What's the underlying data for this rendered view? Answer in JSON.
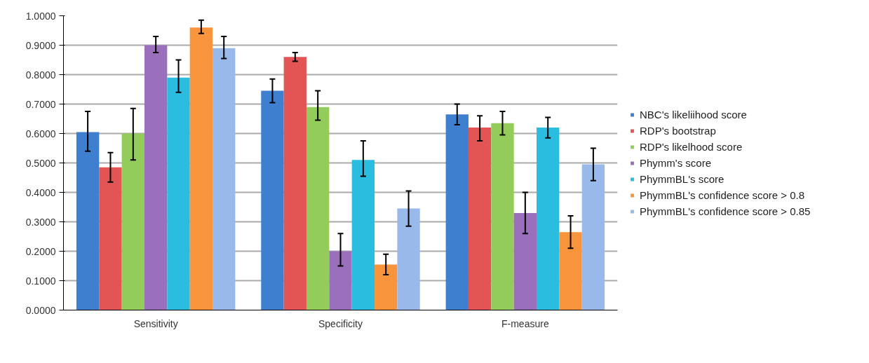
{
  "chart_data": {
    "type": "bar",
    "categories": [
      "Sensitivity",
      "Specificity",
      "F-measure"
    ],
    "series": [
      {
        "name": "NBC's likeliihood score",
        "color": "#3f7fd0",
        "values": [
          0.605,
          0.745,
          0.665
        ],
        "errors": [
          [
            0.54,
            0.675
          ],
          [
            0.705,
            0.785
          ],
          [
            0.63,
            0.7
          ]
        ]
      },
      {
        "name": "RDP's bootstrap",
        "color": "#e35555",
        "values": [
          0.485,
          0.86,
          0.62
        ],
        "errors": [
          [
            0.435,
            0.535
          ],
          [
            0.845,
            0.875
          ],
          [
            0.575,
            0.66
          ]
        ]
      },
      {
        "name": "RDP's likelhood score",
        "color": "#93cc5a",
        "values": [
          0.6,
          0.69,
          0.635
        ],
        "errors": [
          [
            0.51,
            0.685
          ],
          [
            0.645,
            0.745
          ],
          [
            0.595,
            0.675
          ]
        ]
      },
      {
        "name": "Phymm's score",
        "color": "#9a70bd",
        "values": [
          0.9,
          0.2,
          0.33
        ],
        "errors": [
          [
            0.875,
            0.93
          ],
          [
            0.15,
            0.26
          ],
          [
            0.26,
            0.4
          ]
        ]
      },
      {
        "name": "PhymmBL's score",
        "color": "#2bbde0",
        "values": [
          0.79,
          0.51,
          0.62
        ],
        "errors": [
          [
            0.74,
            0.85
          ],
          [
            0.455,
            0.575
          ],
          [
            0.585,
            0.655
          ]
        ]
      },
      {
        "name": "PhymmBL's confidence score > 0.8",
        "color": "#f8953c",
        "values": [
          0.96,
          0.155,
          0.265
        ],
        "errors": [
          [
            0.94,
            0.985
          ],
          [
            0.12,
            0.19
          ],
          [
            0.21,
            0.32
          ]
        ]
      },
      {
        "name": "PhymmBL's confidence score > 0.85",
        "color": "#98b9ea",
        "values": [
          0.89,
          0.345,
          0.495
        ],
        "errors": [
          [
            0.855,
            0.93
          ],
          [
            0.285,
            0.405
          ],
          [
            0.44,
            0.55
          ]
        ]
      }
    ],
    "ylim": [
      0,
      1
    ],
    "yticks": [
      {
        "value": 0,
        "label": "0.0000"
      },
      {
        "value": 0.1,
        "label": "0.1000"
      },
      {
        "value": 0.2,
        "label": "0.2000"
      },
      {
        "value": 0.3,
        "label": "0.3000"
      },
      {
        "value": 0.4,
        "label": "0.4000"
      },
      {
        "value": 0.5,
        "label": "0.5000"
      },
      {
        "value": 0.6,
        "label": "0.6000"
      },
      {
        "value": 0.7,
        "label": "0.7000"
      },
      {
        "value": 0.8,
        "label": "0.8000"
      },
      {
        "value": 0.9,
        "label": "0.9000"
      },
      {
        "value": 1,
        "label": "1.0000"
      }
    ],
    "grid": "y",
    "legend": "right"
  }
}
